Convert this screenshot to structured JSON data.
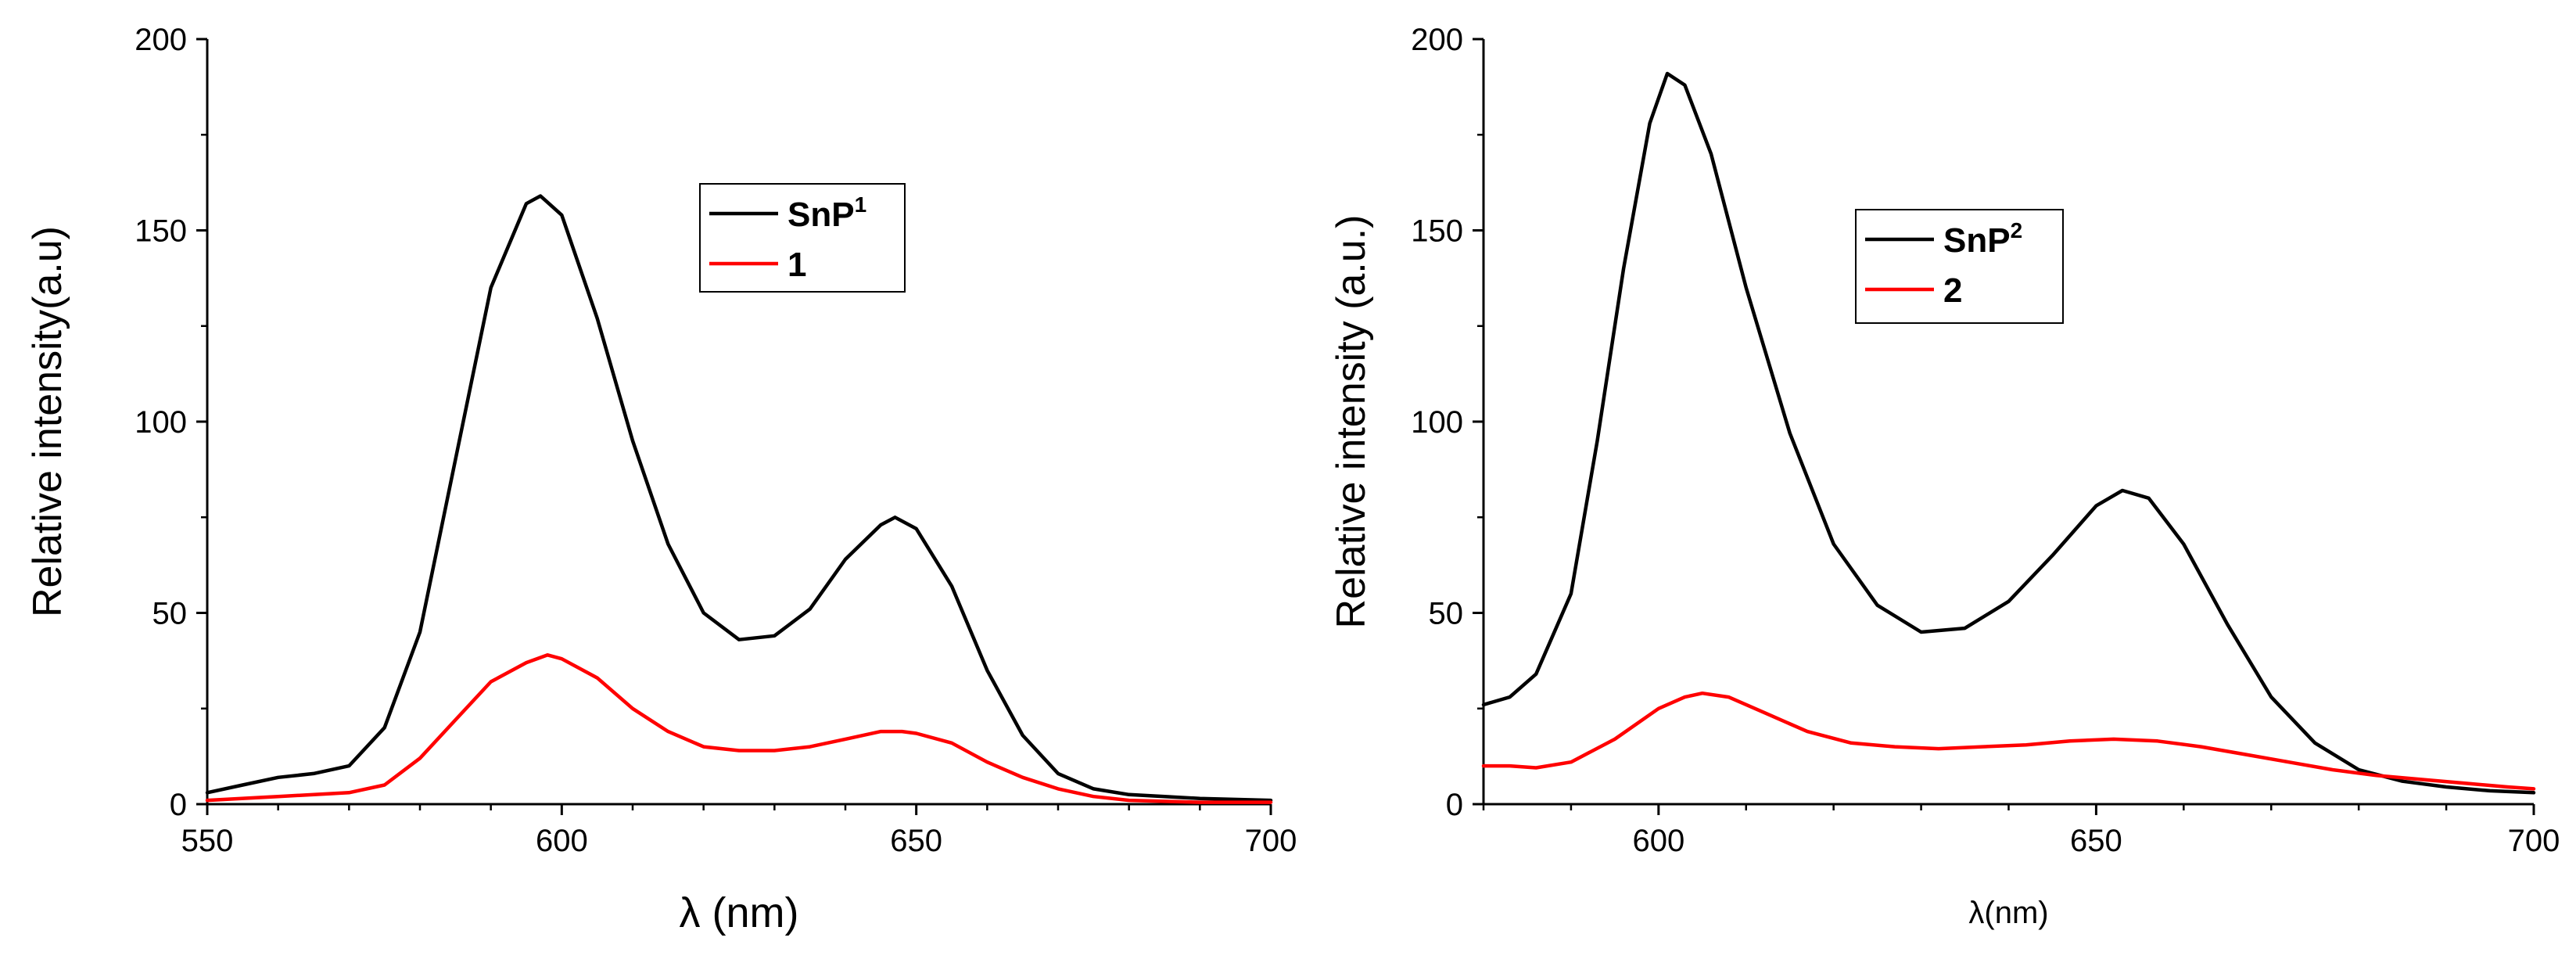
{
  "chart_data": [
    {
      "type": "line",
      "title": "",
      "xlabel": "λ (nm)",
      "ylabel": "Relative intensity(a.u)",
      "xlim": [
        550,
        700
      ],
      "ylim": [
        0,
        200
      ],
      "x_ticks": [
        550,
        600,
        650,
        700
      ],
      "y_ticks": [
        0,
        50,
        100,
        150,
        200
      ],
      "grid": false,
      "legend_position": "top-center",
      "series": [
        {
          "name": "SnP",
          "name_sup": "1",
          "color": "#000000",
          "points": [
            [
              550,
              3
            ],
            [
              555,
              5
            ],
            [
              560,
              7
            ],
            [
              565,
              8
            ],
            [
              570,
              10
            ],
            [
              575,
              20
            ],
            [
              580,
              45
            ],
            [
              585,
              90
            ],
            [
              590,
              135
            ],
            [
              595,
              157
            ],
            [
              597,
              159
            ],
            [
              600,
              154
            ],
            [
              605,
              127
            ],
            [
              610,
              95
            ],
            [
              615,
              68
            ],
            [
              620,
              50
            ],
            [
              625,
              43
            ],
            [
              630,
              44
            ],
            [
              635,
              51
            ],
            [
              640,
              64
            ],
            [
              645,
              73
            ],
            [
              647,
              75
            ],
            [
              650,
              72
            ],
            [
              655,
              57
            ],
            [
              660,
              35
            ],
            [
              665,
              18
            ],
            [
              670,
              8
            ],
            [
              675,
              4
            ],
            [
              680,
              2.5
            ],
            [
              690,
              1.5
            ],
            [
              700,
              1
            ]
          ]
        },
        {
          "name": "1",
          "name_sup": "",
          "color": "#ff0000",
          "points": [
            [
              550,
              1
            ],
            [
              560,
              2
            ],
            [
              570,
              3
            ],
            [
              575,
              5
            ],
            [
              580,
              12
            ],
            [
              585,
              22
            ],
            [
              590,
              32
            ],
            [
              595,
              37
            ],
            [
              598,
              39
            ],
            [
              600,
              38
            ],
            [
              605,
              33
            ],
            [
              610,
              25
            ],
            [
              615,
              19
            ],
            [
              620,
              15
            ],
            [
              625,
              14
            ],
            [
              630,
              14
            ],
            [
              635,
              15
            ],
            [
              640,
              17
            ],
            [
              645,
              19
            ],
            [
              648,
              19
            ],
            [
              650,
              18.5
            ],
            [
              655,
              16
            ],
            [
              660,
              11
            ],
            [
              665,
              7
            ],
            [
              670,
              4
            ],
            [
              675,
              2
            ],
            [
              680,
              1
            ],
            [
              690,
              0.5
            ],
            [
              700,
              0.5
            ]
          ]
        }
      ]
    },
    {
      "type": "line",
      "title": "",
      "xlabel": "λ(nm)",
      "ylabel": "Relative intensity (a.u.)",
      "xlim": [
        580,
        700
      ],
      "ylim": [
        0,
        200
      ],
      "x_ticks": [
        600,
        650,
        700
      ],
      "y_ticks": [
        0,
        50,
        100,
        150,
        200
      ],
      "grid": false,
      "legend_position": "top-center",
      "series": [
        {
          "name": "SnP",
          "name_sup": "2",
          "color": "#000000",
          "points": [
            [
              580,
              26
            ],
            [
              583,
              28
            ],
            [
              586,
              34
            ],
            [
              590,
              55
            ],
            [
              593,
              95
            ],
            [
              596,
              140
            ],
            [
              599,
              178
            ],
            [
              601,
              191
            ],
            [
              603,
              188
            ],
            [
              606,
              170
            ],
            [
              610,
              135
            ],
            [
              615,
              97
            ],
            [
              620,
              68
            ],
            [
              625,
              52
            ],
            [
              630,
              45
            ],
            [
              635,
              46
            ],
            [
              640,
              53
            ],
            [
              645,
              65
            ],
            [
              650,
              78
            ],
            [
              653,
              82
            ],
            [
              656,
              80
            ],
            [
              660,
              68
            ],
            [
              665,
              47
            ],
            [
              670,
              28
            ],
            [
              675,
              16
            ],
            [
              680,
              9
            ],
            [
              685,
              6
            ],
            [
              690,
              4.5
            ],
            [
              695,
              3.5
            ],
            [
              700,
              3
            ]
          ]
        },
        {
          "name": "2",
          "name_sup": "",
          "color": "#ff0000",
          "points": [
            [
              580,
              10
            ],
            [
              583,
              10
            ],
            [
              586,
              9.5
            ],
            [
              590,
              11
            ],
            [
              595,
              17
            ],
            [
              600,
              25
            ],
            [
              603,
              28
            ],
            [
              605,
              29
            ],
            [
              608,
              28
            ],
            [
              612,
              24
            ],
            [
              617,
              19
            ],
            [
              622,
              16
            ],
            [
              627,
              15
            ],
            [
              632,
              14.5
            ],
            [
              637,
              15
            ],
            [
              642,
              15.5
            ],
            [
              647,
              16.5
            ],
            [
              652,
              17
            ],
            [
              657,
              16.5
            ],
            [
              662,
              15
            ],
            [
              667,
              13
            ],
            [
              672,
              11
            ],
            [
              677,
              9
            ],
            [
              682,
              7.5
            ],
            [
              687,
              6.5
            ],
            [
              692,
              5.5
            ],
            [
              697,
              4.5
            ],
            [
              700,
              4
            ]
          ]
        }
      ]
    }
  ]
}
